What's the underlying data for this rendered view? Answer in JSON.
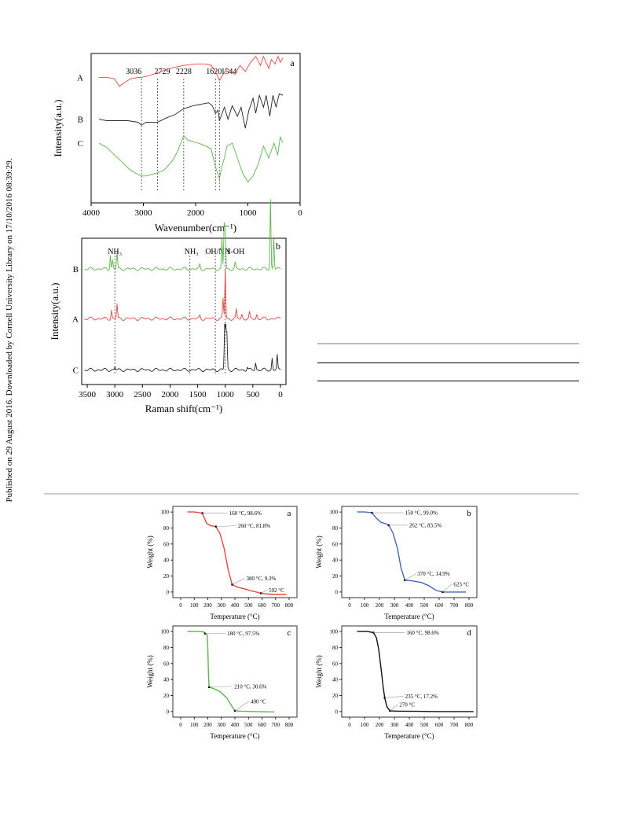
{
  "publication_note": "Published on 29 August 2016. Downloaded by Cornell University Library on 17/10/2016 08:39:29.",
  "chart_data": [
    {
      "type": "line",
      "panel_label": "a",
      "xlabel": "Wavenumber(cm⁻¹)",
      "ylabel": "Intensity(a.u.)",
      "xlim": [
        4000,
        0
      ],
      "xticks": [
        "4000",
        "3000",
        "2000",
        "1000",
        "0"
      ],
      "peak_labels": [
        "3036",
        "2729",
        "2228",
        "1620",
        "1544"
      ],
      "peak_positions": [
        3036,
        2729,
        2228,
        1620,
        1544
      ],
      "series": [
        {
          "name": "A",
          "color": "#e8473e",
          "points": [
            [
              3850,
              84
            ],
            [
              3700,
              84
            ],
            [
              3550,
              83
            ],
            [
              3460,
              78
            ],
            [
              3380,
              80
            ],
            [
              3250,
              83
            ],
            [
              3100,
              84
            ],
            [
              3036,
              84
            ],
            [
              2900,
              85
            ],
            [
              2729,
              87
            ],
            [
              2500,
              90
            ],
            [
              2228,
              92
            ],
            [
              2000,
              93
            ],
            [
              1800,
              93
            ],
            [
              1700,
              92
            ],
            [
              1620,
              88
            ],
            [
              1544,
              82
            ],
            [
              1400,
              90
            ],
            [
              1250,
              86
            ],
            [
              1150,
              92
            ],
            [
              1050,
              88
            ],
            [
              950,
              94
            ],
            [
              850,
              98
            ],
            [
              760,
              92
            ],
            [
              700,
              98
            ],
            [
              600,
              90
            ],
            [
              550,
              96
            ],
            [
              480,
              93
            ],
            [
              420,
              98
            ],
            [
              380,
              94
            ],
            [
              330,
              97
            ]
          ]
        },
        {
          "name": "B",
          "color": "#222222",
          "points": [
            [
              3850,
              56
            ],
            [
              3700,
              55
            ],
            [
              3500,
              55
            ],
            [
              3300,
              55
            ],
            [
              3100,
              54
            ],
            [
              3036,
              52
            ],
            [
              2950,
              54
            ],
            [
              2729,
              54
            ],
            [
              2550,
              57
            ],
            [
              2400,
              59
            ],
            [
              2228,
              63
            ],
            [
              2050,
              65
            ],
            [
              1900,
              66
            ],
            [
              1750,
              67
            ],
            [
              1680,
              65
            ],
            [
              1620,
              60
            ],
            [
              1570,
              62
            ],
            [
              1544,
              55
            ],
            [
              1450,
              64
            ],
            [
              1380,
              56
            ],
            [
              1300,
              65
            ],
            [
              1200,
              58
            ],
            [
              1130,
              64
            ],
            [
              1050,
              50
            ],
            [
              980,
              62
            ],
            [
              900,
              70
            ],
            [
              850,
              60
            ],
            [
              780,
              72
            ],
            [
              700,
              64
            ],
            [
              650,
              72
            ],
            [
              580,
              58
            ],
            [
              520,
              72
            ],
            [
              460,
              64
            ],
            [
              400,
              73
            ],
            [
              330,
              72
            ]
          ]
        },
        {
          "name": "C",
          "color": "#5cb54a",
          "points": [
            [
              3850,
              40
            ],
            [
              3700,
              37
            ],
            [
              3550,
              32
            ],
            [
              3400,
              27
            ],
            [
              3250,
              22
            ],
            [
              3100,
              19
            ],
            [
              3036,
              18
            ],
            [
              2950,
              18
            ],
            [
              2850,
              19
            ],
            [
              2729,
              20
            ],
            [
              2600,
              22
            ],
            [
              2450,
              28
            ],
            [
              2350,
              34
            ],
            [
              2228,
              45
            ],
            [
              2150,
              42
            ],
            [
              2050,
              41
            ],
            [
              1950,
              40
            ],
            [
              1800,
              38
            ],
            [
              1700,
              36
            ],
            [
              1620,
              24
            ],
            [
              1560,
              18
            ],
            [
              1544,
              16
            ],
            [
              1500,
              24
            ],
            [
              1450,
              30
            ],
            [
              1400,
              38
            ],
            [
              1300,
              40
            ],
            [
              1200,
              30
            ],
            [
              1100,
              20
            ],
            [
              1000,
              14
            ],
            [
              900,
              18
            ],
            [
              800,
              26
            ],
            [
              700,
              38
            ],
            [
              600,
              30
            ],
            [
              500,
              40
            ],
            [
              430,
              32
            ],
            [
              380,
              44
            ],
            [
              330,
              40
            ]
          ]
        }
      ]
    },
    {
      "type": "line",
      "panel_label": "b",
      "xlabel": "Raman shift(cm⁻¹)",
      "ylabel": "Intensity(a.u.)",
      "xlim": [
        3600,
        -100
      ],
      "xticks": [
        "3500",
        "3000",
        "2500",
        "2000",
        "1500",
        "1000",
        "500",
        "0"
      ],
      "peak_labels": [
        "NH₃",
        "NH₃",
        "OH/NH",
        "N-OH"
      ],
      "peak_positions": [
        3000,
        1640,
        1180,
        1000
      ],
      "series": [
        {
          "name": "B",
          "color": "#5cb54a",
          "baseline": 79,
          "peaks": [
            [
              3080,
              10
            ],
            [
              3040,
              6
            ],
            [
              2960,
              12
            ],
            [
              1460,
              3
            ],
            [
              1060,
              20
            ],
            [
              1020,
              30
            ],
            [
              1000,
              28
            ],
            [
              820,
              4
            ],
            [
              180,
              48
            ],
            [
              120,
              22
            ]
          ]
        },
        {
          "name": "A",
          "color": "#e8473e",
          "baseline": 45,
          "peaks": [
            [
              3060,
              6
            ],
            [
              2960,
              10
            ],
            [
              1460,
              2
            ],
            [
              1040,
              14
            ],
            [
              1000,
              34
            ],
            [
              800,
              6
            ],
            [
              700,
              3
            ],
            [
              560,
              4
            ],
            [
              430,
              3
            ]
          ]
        },
        {
          "name": "C",
          "color": "#222222",
          "baseline": 10,
          "peaks": [
            [
              3000,
              2
            ],
            [
              1010,
              30
            ],
            [
              990,
              28
            ],
            [
              970,
              24
            ],
            [
              600,
              2
            ],
            [
              450,
              5
            ],
            [
              150,
              8
            ],
            [
              60,
              10
            ]
          ]
        }
      ]
    },
    {
      "type": "line",
      "panel_label": "a",
      "xlabel": "Temperature (°C)",
      "ylabel": "Weight (%)",
      "xlim": [
        0,
        800
      ],
      "ylim": [
        -5,
        105
      ],
      "xticks": [
        "0",
        "100",
        "200",
        "300",
        "400",
        "500",
        "600",
        "700",
        "800"
      ],
      "yticks": [
        "0",
        "20",
        "40",
        "60",
        "80",
        "100"
      ],
      "color": "#e8473e",
      "points": [
        [
          50,
          100
        ],
        [
          100,
          100
        ],
        [
          160,
          98.6
        ],
        [
          190,
          86
        ],
        [
          220,
          83
        ],
        [
          260,
          81.8
        ],
        [
          290,
          73
        ],
        [
          320,
          55
        ],
        [
          350,
          28
        ],
        [
          380,
          9.3
        ],
        [
          420,
          6
        ],
        [
          470,
          4
        ],
        [
          520,
          1.5
        ],
        [
          560,
          0
        ],
        [
          592,
          -1.5
        ],
        [
          640,
          -2.5
        ],
        [
          700,
          -3
        ],
        [
          780,
          -3
        ]
      ],
      "annotations": [
        {
          "text": "160 °C, 98.6%",
          "x": 160,
          "y": 98.6
        },
        {
          "text": "260 °C, 81.8%",
          "x": 260,
          "y": 81.8
        },
        {
          "text": "380 °C, 9.3%",
          "x": 380,
          "y": 9.3
        },
        {
          "text": "592 °C",
          "x": 592,
          "y": -1.5
        }
      ]
    },
    {
      "type": "line",
      "panel_label": "b",
      "xlabel": "Temperature (°C)",
      "ylabel": "Weight (%)",
      "xlim": [
        0,
        800
      ],
      "ylim": [
        -5,
        105
      ],
      "xticks": [
        "0",
        "100",
        "200",
        "300",
        "400",
        "500",
        "600",
        "700",
        "800"
      ],
      "yticks": [
        "0",
        "20",
        "40",
        "60",
        "80",
        "100"
      ],
      "color": "#4466bb",
      "points": [
        [
          50,
          100
        ],
        [
          100,
          100
        ],
        [
          150,
          99
        ],
        [
          180,
          92
        ],
        [
          210,
          87
        ],
        [
          240,
          85.5
        ],
        [
          262,
          83.5
        ],
        [
          290,
          74
        ],
        [
          320,
          55
        ],
        [
          345,
          30
        ],
        [
          370,
          14.9
        ],
        [
          420,
          14
        ],
        [
          480,
          12
        ],
        [
          530,
          8
        ],
        [
          580,
          2
        ],
        [
          623,
          0
        ],
        [
          700,
          0
        ],
        [
          780,
          0
        ]
      ],
      "annotations": [
        {
          "text": "150 °C, 99.0%",
          "x": 150,
          "y": 99.0
        },
        {
          "text": "262 °C, 83.5%",
          "x": 262,
          "y": 83.5
        },
        {
          "text": "370 °C, 14.9%",
          "x": 370,
          "y": 14.9
        },
        {
          "text": "623 °C",
          "x": 623,
          "y": 0
        }
      ]
    },
    {
      "type": "line",
      "panel_label": "c",
      "xlabel": "Temperature (°C)",
      "ylabel": "Weight (%)",
      "xlim": [
        0,
        800
      ],
      "ylim": [
        -5,
        105
      ],
      "xticks": [
        "0",
        "100",
        "200",
        "300",
        "400",
        "500",
        "600",
        "700",
        "800"
      ],
      "yticks": [
        "0",
        "20",
        "40",
        "60",
        "80",
        "100"
      ],
      "color": "#5cb54a",
      "points": [
        [
          50,
          100
        ],
        [
          120,
          100
        ],
        [
          170,
          99.5
        ],
        [
          180,
          97.5
        ],
        [
          195,
          96
        ],
        [
          200,
          80
        ],
        [
          205,
          45
        ],
        [
          210,
          30.6
        ],
        [
          240,
          29
        ],
        [
          290,
          25
        ],
        [
          340,
          17
        ],
        [
          380,
          6
        ],
        [
          400,
          1
        ],
        [
          450,
          0.5
        ],
        [
          550,
          0
        ],
        [
          690,
          -0.5
        ]
      ],
      "annotations": [
        {
          "text": "180 °C, 97.5%",
          "x": 180,
          "y": 97.5
        },
        {
          "text": "210 °C, 30.6%",
          "x": 210,
          "y": 30.6
        },
        {
          "text": "400 °C",
          "x": 400,
          "y": 1
        }
      ]
    },
    {
      "type": "line",
      "panel_label": "d",
      "xlabel": "Temperature (°C)",
      "ylabel": "Weight (%)",
      "xlim": [
        0,
        800
      ],
      "ylim": [
        -5,
        105
      ],
      "xticks": [
        "0",
        "100",
        "200",
        "300",
        "400",
        "500",
        "600",
        "700",
        "800"
      ],
      "yticks": [
        "0",
        "20",
        "40",
        "60",
        "80",
        "100"
      ],
      "color": "#111111",
      "points": [
        [
          50,
          100
        ],
        [
          120,
          100
        ],
        [
          160,
          98.6
        ],
        [
          180,
          92
        ],
        [
          195,
          78
        ],
        [
          210,
          55
        ],
        [
          225,
          30
        ],
        [
          235,
          17.2
        ],
        [
          250,
          6
        ],
        [
          270,
          1
        ],
        [
          320,
          0.5
        ],
        [
          450,
          0.3
        ],
        [
          600,
          0
        ],
        [
          830,
          0
        ]
      ],
      "annotations": [
        {
          "text": "160 °C, 98.6%",
          "x": 160,
          "y": 98.6
        },
        {
          "text": "235 °C, 17.2%",
          "x": 235,
          "y": 17.2
        },
        {
          "text": "270 °C",
          "x": 270,
          "y": 1
        }
      ]
    }
  ]
}
